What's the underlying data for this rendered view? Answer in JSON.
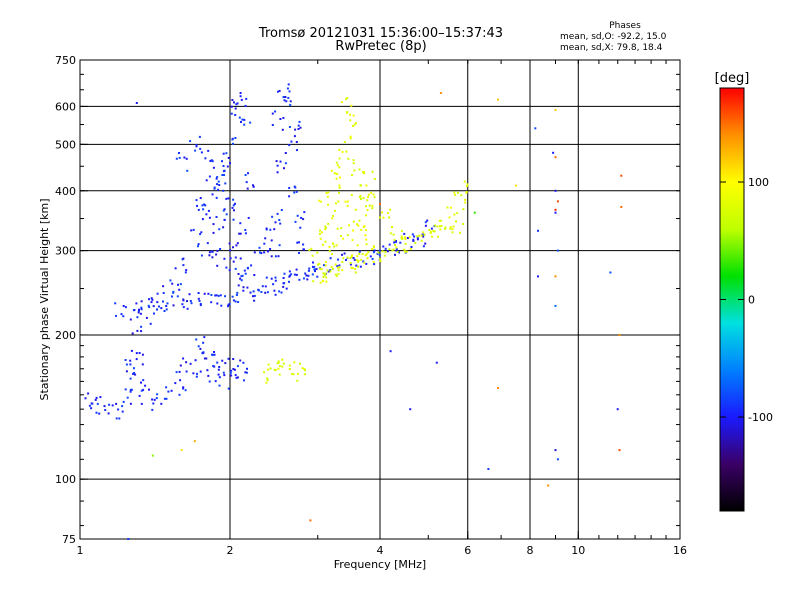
{
  "header": {
    "title_line1": "Tromsø 20121031 15:36:00–15:37:43",
    "title_line2": "RwPretec (8p)"
  },
  "stats": {
    "title": "Phases",
    "line1": "mean, sd,O: -92.2, 15.0",
    "line2": "mean, sd,X:  79.8, 18.4"
  },
  "colorbar": {
    "unit_label": "[deg]",
    "range": [
      -180,
      180
    ],
    "tick_labels": [
      {
        "value": 100,
        "label": "100"
      },
      {
        "value": 0,
        "label": "0"
      },
      {
        "value": -100,
        "label": "-100"
      }
    ],
    "colors": [
      "#000000",
      "#3a0066",
      "#1a1aff",
      "#0080ff",
      "#00e0e0",
      "#00e000",
      "#c0ff00",
      "#ffff00",
      "#ff9000",
      "#ff0000"
    ]
  },
  "chart_data": {
    "type": "scatter",
    "title": "Tromsø 20121031 15:36:00–15:37:43",
    "subtitle": "RwPretec (8p)",
    "xlabel": "Frequency [MHz]",
    "ylabel": "Stationary phase Virtual Height [km]",
    "x_scale": "log",
    "y_scale": "log",
    "xlim": [
      1,
      16
    ],
    "ylim": [
      75,
      750
    ],
    "x_ticks": [
      {
        "value": 1,
        "label": "1"
      },
      {
        "value": 2,
        "label": "2"
      },
      {
        "value": 4,
        "label": "4"
      },
      {
        "value": 6,
        "label": "6"
      },
      {
        "value": 8,
        "label": "8"
      },
      {
        "value": 10,
        "label": "10"
      },
      {
        "value": 16,
        "label": "16"
      }
    ],
    "x_gridlines": [
      2,
      4,
      6,
      8,
      10
    ],
    "y_ticks": [
      {
        "value": 75,
        "label": "75"
      },
      {
        "value": 100,
        "label": "100"
      },
      {
        "value": 200,
        "label": "200"
      },
      {
        "value": 300,
        "label": "300"
      },
      {
        "value": 400,
        "label": "400"
      },
      {
        "value": 500,
        "label": "500"
      },
      {
        "value": 600,
        "label": "600"
      },
      {
        "value": 750,
        "label": "750"
      }
    ],
    "y_gridlines": [
      100,
      200,
      300,
      400,
      500,
      600
    ],
    "grid": true,
    "color_variable": "phase [deg]",
    "series": [
      {
        "trace": "O-mode F-trace (blue)",
        "phase": -95,
        "points": [
          [
            1.2,
            225
          ],
          [
            1.3,
            228
          ],
          [
            1.4,
            230
          ],
          [
            1.5,
            232
          ],
          [
            1.6,
            233
          ],
          [
            1.7,
            234
          ],
          [
            1.8,
            236
          ],
          [
            1.9,
            238
          ],
          [
            2.0,
            240
          ],
          [
            2.1,
            243
          ],
          [
            2.2,
            246
          ],
          [
            2.3,
            250
          ],
          [
            2.4,
            253
          ],
          [
            2.5,
            256
          ],
          [
            2.6,
            260
          ],
          [
            2.7,
            264
          ],
          [
            2.8,
            268
          ],
          [
            2.9,
            272
          ],
          [
            3.0,
            276
          ],
          [
            3.2,
            280
          ],
          [
            3.4,
            285
          ],
          [
            3.6,
            290
          ],
          [
            3.8,
            292
          ],
          [
            4.0,
            296
          ],
          [
            4.2,
            300
          ],
          [
            4.4,
            305
          ],
          [
            4.6,
            312
          ],
          [
            4.8,
            320
          ],
          [
            5.0,
            335
          ],
          [
            1.6,
            280
          ],
          [
            1.7,
            320
          ],
          [
            1.8,
            360
          ],
          [
            1.9,
            400
          ],
          [
            1.6,
            460
          ],
          [
            1.7,
            500
          ],
          [
            1.8,
            480
          ],
          [
            1.9,
            430
          ],
          [
            2.0,
            380
          ],
          [
            2.0,
            500
          ],
          [
            2.05,
            600
          ],
          [
            2.1,
            620
          ],
          [
            2.05,
            300
          ],
          [
            2.1,
            260
          ],
          [
            2.15,
            340
          ],
          [
            2.2,
            420
          ],
          [
            2.15,
            560
          ],
          [
            2.45,
            300
          ],
          [
            2.5,
            350
          ],
          [
            2.55,
            450
          ],
          [
            2.5,
            560
          ],
          [
            2.55,
            640
          ],
          [
            2.6,
            620
          ],
          [
            2.65,
            500
          ],
          [
            2.7,
            400
          ],
          [
            2.75,
            350
          ],
          [
            2.8,
            300
          ],
          [
            2.7,
            550
          ],
          [
            1.8,
            300
          ],
          [
            1.9,
            290
          ],
          [
            2.0,
            280
          ],
          [
            2.2,
            270
          ],
          [
            2.3,
            300
          ],
          [
            2.4,
            320
          ],
          [
            1.9,
            340
          ],
          [
            2.0,
            360
          ],
          [
            1.75,
            380
          ],
          [
            1.85,
            420
          ],
          [
            1.95,
            450
          ],
          [
            1.3,
            210
          ],
          [
            1.35,
            220
          ],
          [
            1.4,
            240
          ],
          [
            1.5,
            245
          ],
          [
            1.55,
            250
          ]
        ]
      },
      {
        "trace": "O-mode E-trace (blue)",
        "phase": -95,
        "points": [
          [
            1.05,
            145
          ],
          [
            1.1,
            142
          ],
          [
            1.15,
            138
          ],
          [
            1.2,
            140
          ],
          [
            1.25,
            150
          ],
          [
            1.3,
            160
          ],
          [
            1.35,
            150
          ],
          [
            1.4,
            145
          ],
          [
            1.5,
            150
          ],
          [
            1.6,
            155
          ],
          [
            1.7,
            170
          ],
          [
            1.8,
            185
          ],
          [
            1.9,
            178
          ],
          [
            2.0,
            172
          ],
          [
            2.05,
            170
          ],
          [
            2.1,
            168
          ],
          [
            1.75,
            190
          ],
          [
            1.85,
            165
          ],
          [
            1.95,
            160
          ],
          [
            1.6,
            175
          ],
          [
            1.25,
            170
          ],
          [
            1.3,
            180
          ]
        ]
      },
      {
        "trace": "X-mode F-trace (yellow-green)",
        "phase": 80,
        "points": [
          [
            3.0,
            268
          ],
          [
            3.1,
            270
          ],
          [
            3.2,
            272
          ],
          [
            3.3,
            275
          ],
          [
            3.4,
            278
          ],
          [
            3.5,
            282
          ],
          [
            3.6,
            286
          ],
          [
            3.7,
            290
          ],
          [
            3.8,
            295
          ],
          [
            4.0,
            298
          ],
          [
            4.2,
            302
          ],
          [
            4.4,
            306
          ],
          [
            4.6,
            310
          ],
          [
            4.8,
            318
          ],
          [
            5.0,
            325
          ],
          [
            5.2,
            335
          ],
          [
            5.4,
            345
          ],
          [
            5.6,
            360
          ],
          [
            5.8,
            380
          ],
          [
            5.9,
            400
          ],
          [
            5.7,
            340
          ],
          [
            3.05,
            320
          ],
          [
            3.1,
            380
          ],
          [
            3.2,
            350
          ],
          [
            3.3,
            320
          ],
          [
            3.35,
            420
          ],
          [
            3.4,
            500
          ],
          [
            3.45,
            600
          ],
          [
            3.5,
            560
          ],
          [
            3.55,
            450
          ],
          [
            3.6,
            400
          ],
          [
            3.65,
            350
          ],
          [
            3.7,
            320
          ],
          [
            3.75,
            380
          ],
          [
            3.8,
            420
          ],
          [
            3.9,
            380
          ],
          [
            4.1,
            350
          ],
          [
            4.3,
            330
          ],
          [
            3.25,
            450
          ],
          [
            3.35,
            380
          ],
          [
            3.5,
            330
          ],
          [
            3.15,
            300
          ],
          [
            2.95,
            290
          ]
        ]
      },
      {
        "trace": "X-mode E-trace (yellow-green)",
        "phase": 80,
        "points": [
          [
            2.4,
            165
          ],
          [
            2.45,
            170
          ],
          [
            2.5,
            172
          ],
          [
            2.7,
            168
          ],
          [
            2.75,
            165
          ]
        ]
      },
      {
        "trace": "scattered interference",
        "phase": null,
        "points": [
          [
            1.3,
            610,
            -100
          ],
          [
            1.25,
            75,
            -90
          ],
          [
            2.1,
            640,
            -100
          ],
          [
            2.9,
            82,
            150
          ],
          [
            4.2,
            185,
            -100
          ],
          [
            5.2,
            175,
            -100
          ],
          [
            5.3,
            640,
            140
          ],
          [
            6.2,
            360,
            30
          ],
          [
            6.6,
            105,
            -90
          ],
          [
            6.9,
            620,
            120
          ],
          [
            6.9,
            155,
            140
          ],
          [
            7.5,
            410,
            110
          ],
          [
            8.2,
            540,
            -80
          ],
          [
            8.3,
            330,
            -90
          ],
          [
            8.3,
            265,
            -100
          ],
          [
            8.7,
            97,
            140
          ],
          [
            8.9,
            480,
            -100
          ],
          [
            9.0,
            470,
            150
          ],
          [
            9.0,
            400,
            -100
          ],
          [
            9.1,
            380,
            160
          ],
          [
            9.0,
            365,
            170
          ],
          [
            9.1,
            300,
            -80
          ],
          [
            9.0,
            265,
            140
          ],
          [
            9.0,
            230,
            -70
          ],
          [
            9.0,
            115,
            -110
          ],
          [
            9.1,
            110,
            -80
          ],
          [
            9.0,
            360,
            -100
          ],
          [
            9.0,
            590,
            120
          ],
          [
            11.6,
            270,
            -80
          ],
          [
            12.2,
            430,
            160
          ],
          [
            12.2,
            370,
            150
          ],
          [
            12.1,
            200,
            140
          ],
          [
            12.0,
            140,
            -100
          ],
          [
            12.1,
            115,
            160
          ],
          [
            1.6,
            115,
            110
          ],
          [
            1.7,
            120,
            130
          ],
          [
            1.4,
            112,
            50
          ],
          [
            4.6,
            140,
            -100
          ],
          [
            4.0,
            375,
            150
          ]
        ]
      }
    ]
  }
}
